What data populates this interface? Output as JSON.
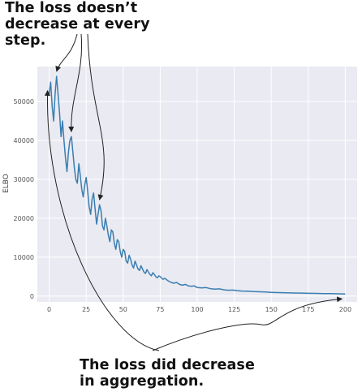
{
  "annotations": {
    "top": [
      "The loss doesn’t",
      "decrease at every step."
    ],
    "bottom": [
      "The loss did decrease",
      "in aggregation."
    ]
  },
  "colors": {
    "line": "#3a7eb0",
    "plot_bg": "#eaeaf2",
    "grid": "#ffffff",
    "arrow": "#222222"
  },
  "chart_data": {
    "type": "line",
    "title": "",
    "xlabel": "",
    "ylabel": "ELBO",
    "xlim": [
      -8,
      208
    ],
    "ylim": [
      -1500,
      59000
    ],
    "xticks": [
      0,
      25,
      50,
      75,
      100,
      125,
      150,
      175,
      200
    ],
    "yticks": [
      0,
      10000,
      20000,
      30000,
      40000,
      50000
    ],
    "grid": true,
    "series": [
      {
        "name": "",
        "x": [
          0,
          1,
          2,
          3,
          4,
          5,
          6,
          7,
          8,
          9,
          10,
          11,
          12,
          13,
          14,
          15,
          16,
          17,
          18,
          19,
          20,
          21,
          22,
          23,
          24,
          25,
          26,
          27,
          28,
          29,
          30,
          31,
          32,
          33,
          34,
          35,
          36,
          37,
          38,
          39,
          40,
          41,
          42,
          43,
          44,
          45,
          46,
          47,
          48,
          49,
          50,
          51,
          52,
          53,
          54,
          55,
          56,
          57,
          58,
          59,
          60,
          61,
          62,
          63,
          64,
          65,
          66,
          67,
          68,
          69,
          70,
          71,
          72,
          73,
          74,
          75,
          76,
          77,
          78,
          79,
          80,
          82,
          84,
          86,
          88,
          90,
          92,
          94,
          96,
          98,
          100,
          103,
          106,
          109,
          112,
          115,
          118,
          121,
          124,
          127,
          130,
          134,
          138,
          142,
          146,
          150,
          155,
          160,
          165,
          170,
          175,
          180,
          185,
          190,
          195,
          200
        ],
        "values": [
          52000,
          55000,
          49000,
          45000,
          52000,
          56500,
          52000,
          47000,
          41000,
          45000,
          40000,
          35500,
          32000,
          37000,
          40000,
          41000,
          37000,
          33000,
          30000,
          29000,
          34000,
          31000,
          27500,
          25500,
          28500,
          30500,
          27000,
          23000,
          21000,
          25000,
          26500,
          22500,
          18500,
          21000,
          23500,
          22000,
          18000,
          17000,
          20000,
          18000,
          15500,
          14000,
          17000,
          16500,
          13500,
          12000,
          14500,
          14000,
          11500,
          10000,
          12000,
          11500,
          9000,
          8500,
          10500,
          9500,
          8000,
          7200,
          9000,
          8000,
          7000,
          6600,
          7800,
          7000,
          6200,
          5800,
          6800,
          6200,
          5600,
          5200,
          6000,
          5600,
          5000,
          4700,
          5200,
          5000,
          4600,
          4300,
          4600,
          4300,
          4000,
          3600,
          3300,
          3500,
          3000,
          2800,
          3000,
          2600,
          2500,
          2600,
          2200,
          2100,
          2200,
          1900,
          1800,
          1850,
          1600,
          1500,
          1550,
          1400,
          1300,
          1250,
          1150,
          1100,
          1050,
          950,
          900,
          850,
          800,
          780,
          720,
          700,
          650,
          620,
          580,
          550
        ]
      }
    ]
  }
}
